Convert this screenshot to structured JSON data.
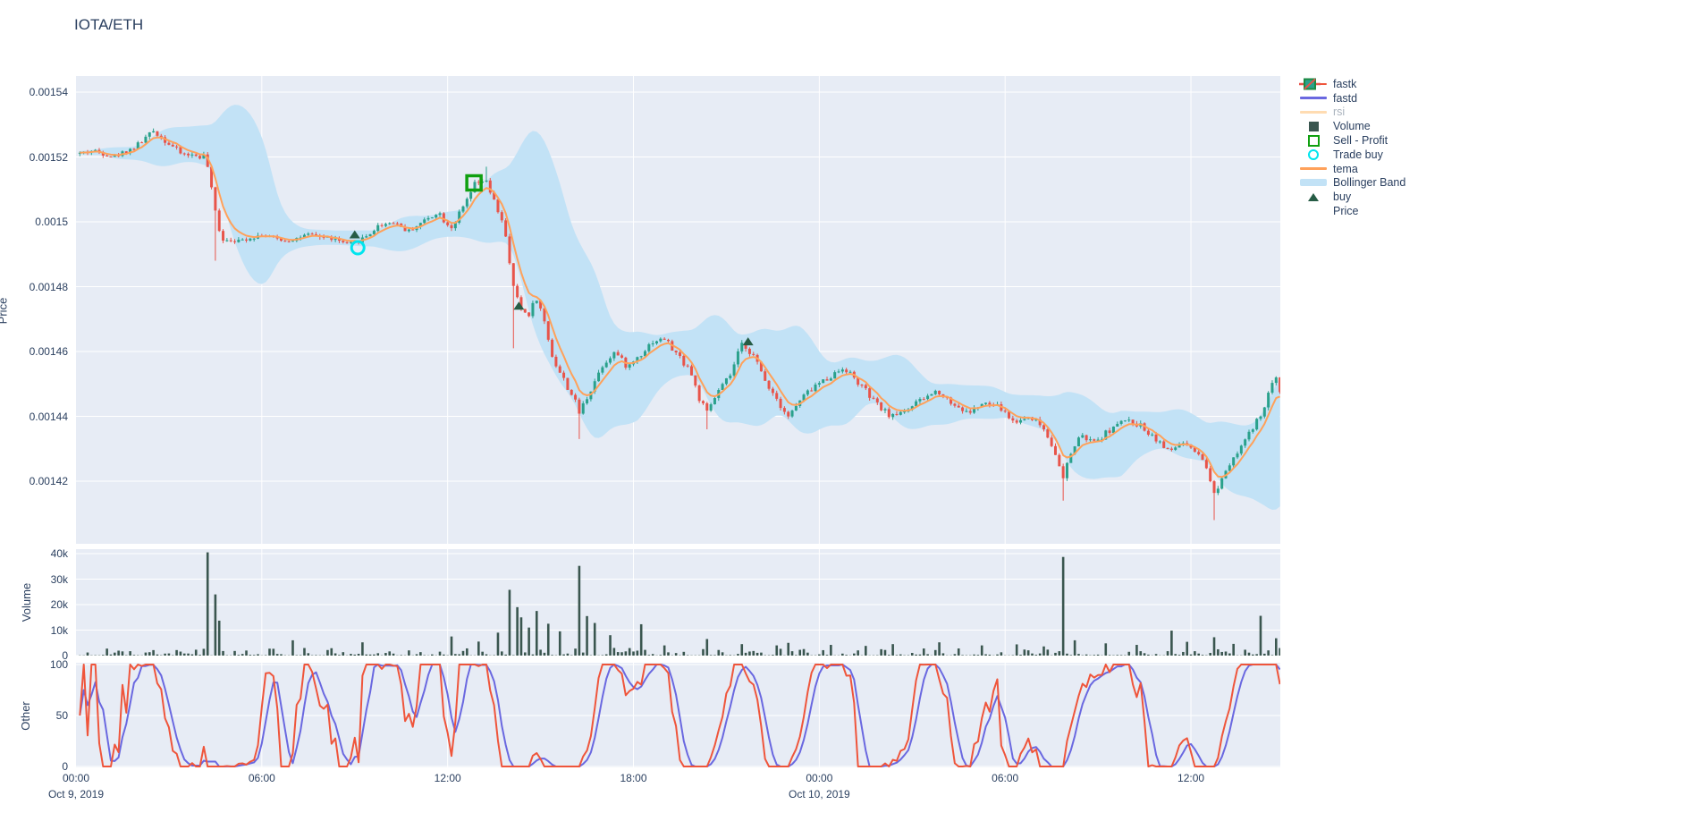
{
  "header": {
    "title": "IOTA/ETH"
  },
  "axes": {
    "price_label": "Price",
    "volume_label": "Volume",
    "other_label": "Other"
  },
  "colors": {
    "fastk": "#ef553b",
    "fastd": "#6a68e0",
    "rsi": "#ffdcb2",
    "volume_bar": "#3a564f",
    "sell_profit": "#10a010",
    "trade_buy": "#00e5ee",
    "tema": "#ffa15a",
    "bollinger": "#c2e2f6",
    "buy": "#265c45",
    "candle_up": "#2aa18c",
    "candle_down": "#e8544a",
    "plot_bg": "#e7ecf5",
    "grid": "#ffffff",
    "text": "#2a3f5f",
    "muted_text": "#a9b2bd"
  },
  "legend": {
    "items": [
      {
        "label": "fastk",
        "glyph": "line",
        "color": "#ef553b",
        "muted": false
      },
      {
        "label": "fastd",
        "glyph": "line",
        "color": "#6a68e0",
        "muted": false
      },
      {
        "label": "rsi",
        "glyph": "line",
        "color": "#ffdcb2",
        "muted": true
      },
      {
        "label": "Volume",
        "glyph": "square",
        "color": "#3a564f",
        "muted": false
      },
      {
        "label": "Sell - Profit",
        "glyph": "open-square",
        "color": "#10a010",
        "muted": false
      },
      {
        "label": "Trade buy",
        "glyph": "open-circle",
        "color": "#00e5ee",
        "muted": false
      },
      {
        "label": "tema",
        "glyph": "line",
        "color": "#ffa15a",
        "muted": false
      },
      {
        "label": "Bollinger Band",
        "glyph": "band",
        "color": "#c2e2f6",
        "muted": false
      },
      {
        "label": "buy",
        "glyph": "triangle-up",
        "color": "#265c45",
        "muted": false
      },
      {
        "label": "Price",
        "glyph": "candlestick",
        "color": "#2aa18c",
        "color2": "#e8544a",
        "muted": false
      }
    ]
  },
  "x_axis": {
    "span_hours": 38.9,
    "tick_hours": [
      0,
      6,
      12,
      18,
      24,
      30,
      36
    ],
    "tick_labels": [
      "00:00",
      "06:00",
      "12:00",
      "18:00",
      "00:00",
      "06:00",
      "12:00"
    ],
    "date_labels": [
      {
        "text": "Oct 9, 2019",
        "hour": 0
      },
      {
        "text": "Oct 10, 2019",
        "hour": 24
      }
    ]
  },
  "chart_data": [
    {
      "type": "candlestick",
      "name": "Price",
      "ylabel": "Price",
      "ytick_labels": [
        "0.00154",
        "0.00152",
        "0.0015",
        "0.00148",
        "0.00146",
        "0.00144",
        "0.00142"
      ],
      "ytick_values_micro": [
        1540,
        1520,
        1500,
        1480,
        1460,
        1440,
        1420
      ],
      "ylim_micro": [
        1401,
        1545
      ],
      "price_unit_scale": 1e-06,
      "overlays": [
        "tema (EMA)",
        "Bollinger Band"
      ],
      "price_anchors_micro": [
        [
          0,
          1521
        ],
        [
          0.6,
          1522
        ],
        [
          1.2,
          1520
        ],
        [
          1.9,
          1523
        ],
        [
          2.5,
          1528
        ],
        [
          2.9,
          1525
        ],
        [
          3.4,
          1521
        ],
        [
          4.2,
          1520
        ],
        [
          4.45,
          1505
        ],
        [
          4.7,
          1495
        ],
        [
          5.2,
          1494
        ],
        [
          6,
          1496
        ],
        [
          6.8,
          1494
        ],
        [
          7.5,
          1496
        ],
        [
          8.2,
          1495
        ],
        [
          8.8,
          1493
        ],
        [
          9.3,
          1495
        ],
        [
          9.8,
          1499
        ],
        [
          10.3,
          1500
        ],
        [
          10.7,
          1497
        ],
        [
          11.2,
          1500
        ],
        [
          11.7,
          1503
        ],
        [
          12.1,
          1498
        ],
        [
          12.5,
          1504
        ],
        [
          12.85,
          1511
        ],
        [
          13.2,
          1513
        ],
        [
          13.5,
          1506
        ],
        [
          13.8,
          1500
        ],
        [
          14.05,
          1483
        ],
        [
          14.3,
          1474
        ],
        [
          14.6,
          1471
        ],
        [
          14.85,
          1477
        ],
        [
          15.1,
          1470
        ],
        [
          15.4,
          1458
        ],
        [
          15.7,
          1452
        ],
        [
          16,
          1447
        ],
        [
          16.25,
          1441
        ],
        [
          16.6,
          1448
        ],
        [
          17,
          1456
        ],
        [
          17.4,
          1460
        ],
        [
          17.8,
          1455
        ],
        [
          18.2,
          1459
        ],
        [
          18.6,
          1463
        ],
        [
          19,
          1464
        ],
        [
          19.4,
          1459
        ],
        [
          19.8,
          1455
        ],
        [
          20.1,
          1446
        ],
        [
          20.35,
          1441
        ],
        [
          20.7,
          1447
        ],
        [
          21.1,
          1452
        ],
        [
          21.5,
          1462
        ],
        [
          21.8,
          1460
        ],
        [
          22.2,
          1452
        ],
        [
          22.6,
          1446
        ],
        [
          23,
          1440
        ],
        [
          23.4,
          1445
        ],
        [
          23.8,
          1449
        ],
        [
          24.3,
          1452
        ],
        [
          24.8,
          1455
        ],
        [
          25.3,
          1450
        ],
        [
          25.8,
          1444
        ],
        [
          26.3,
          1440
        ],
        [
          26.8,
          1442
        ],
        [
          27.3,
          1445
        ],
        [
          27.8,
          1448
        ],
        [
          28.3,
          1444
        ],
        [
          28.8,
          1441
        ],
        [
          29.3,
          1444
        ],
        [
          29.8,
          1443
        ],
        [
          30.3,
          1438
        ],
        [
          30.8,
          1440
        ],
        [
          31.2,
          1437
        ],
        [
          31.6,
          1430
        ],
        [
          31.85,
          1420
        ],
        [
          32.1,
          1428
        ],
        [
          32.4,
          1434
        ],
        [
          32.9,
          1432
        ],
        [
          33.4,
          1436
        ],
        [
          33.9,
          1439
        ],
        [
          34.4,
          1437
        ],
        [
          34.9,
          1433
        ],
        [
          35.3,
          1429
        ],
        [
          35.7,
          1432
        ],
        [
          36.1,
          1429
        ],
        [
          36.5,
          1424
        ],
        [
          36.75,
          1416
        ],
        [
          37,
          1421
        ],
        [
          37.3,
          1427
        ],
        [
          37.7,
          1432
        ],
        [
          38,
          1436
        ],
        [
          38.3,
          1441
        ],
        [
          38.55,
          1448
        ],
        [
          38.75,
          1452
        ],
        [
          38.9,
          1447
        ]
      ],
      "long_wicks": [
        [
          4.55,
          -1,
          1488
        ],
        [
          13.25,
          1,
          1517
        ],
        [
          14.15,
          -1,
          1461
        ],
        [
          16.25,
          -1,
          1433
        ],
        [
          20.35,
          -1,
          1436
        ],
        [
          31.85,
          -1,
          1414
        ],
        [
          36.8,
          -1,
          1408
        ]
      ],
      "markers": {
        "buy": [
          [
            9.0,
            1496
          ],
          [
            14.3,
            1474
          ],
          [
            21.7,
            1463
          ]
        ],
        "trade_buy": [
          [
            9.1,
            1492
          ]
        ],
        "sell_profit": [
          [
            12.85,
            1512
          ]
        ]
      }
    },
    {
      "type": "bar",
      "name": "Volume",
      "ylabel": "Volume",
      "ytick_labels": [
        "0",
        "10k",
        "20k",
        "30k",
        "40k"
      ],
      "ytick_values": [
        0,
        10000,
        20000,
        30000,
        40000
      ],
      "ylim": [
        0,
        41800
      ],
      "base_noise_range": [
        100,
        3000
      ],
      "volume_spikes": [
        [
          4.28,
          40500
        ],
        [
          4.45,
          24000
        ],
        [
          4.62,
          13700
        ],
        [
          7.0,
          6000
        ],
        [
          9.3,
          5200
        ],
        [
          12.1,
          7500
        ],
        [
          13.0,
          5500
        ],
        [
          13.6,
          9000
        ],
        [
          13.95,
          25800
        ],
        [
          14.2,
          19000
        ],
        [
          14.35,
          15000
        ],
        [
          14.6,
          11000
        ],
        [
          14.9,
          17500
        ],
        [
          15.2,
          12500
        ],
        [
          15.6,
          9500
        ],
        [
          16.2,
          35200
        ],
        [
          16.45,
          15500
        ],
        [
          16.8,
          12800
        ],
        [
          17.2,
          8000
        ],
        [
          18.3,
          12300
        ],
        [
          19.0,
          4000
        ],
        [
          20.35,
          6500
        ],
        [
          21.5,
          4500
        ],
        [
          22.6,
          4000
        ],
        [
          23.0,
          5000
        ],
        [
          24.4,
          4200
        ],
        [
          25.5,
          3800
        ],
        [
          26.4,
          4500
        ],
        [
          27.9,
          5200
        ],
        [
          29.2,
          4000
        ],
        [
          30.4,
          4400
        ],
        [
          31.3,
          3600
        ],
        [
          31.83,
          38700
        ],
        [
          32.3,
          6000
        ],
        [
          33.3,
          4800
        ],
        [
          34.3,
          4200
        ],
        [
          35.4,
          9800
        ],
        [
          35.9,
          5400
        ],
        [
          36.75,
          7200
        ],
        [
          37.4,
          4600
        ],
        [
          38.3,
          15600
        ],
        [
          38.7,
          6800
        ]
      ]
    },
    {
      "type": "line",
      "name": "Other",
      "ylabel": "Other",
      "ytick_labels": [
        "0",
        "50",
        "100"
      ],
      "ytick_values": [
        0,
        50,
        100
      ],
      "ylim": [
        0,
        100
      ],
      "series": [
        {
          "name": "fastk",
          "color": "#ef553b",
          "derivation": "stochastic %K, 12-candle window of Price closes, range 0-100"
        },
        {
          "name": "fastd",
          "color": "#6a68e0",
          "derivation": "SMA(4) of fastk, range 0-100"
        }
      ]
    }
  ]
}
